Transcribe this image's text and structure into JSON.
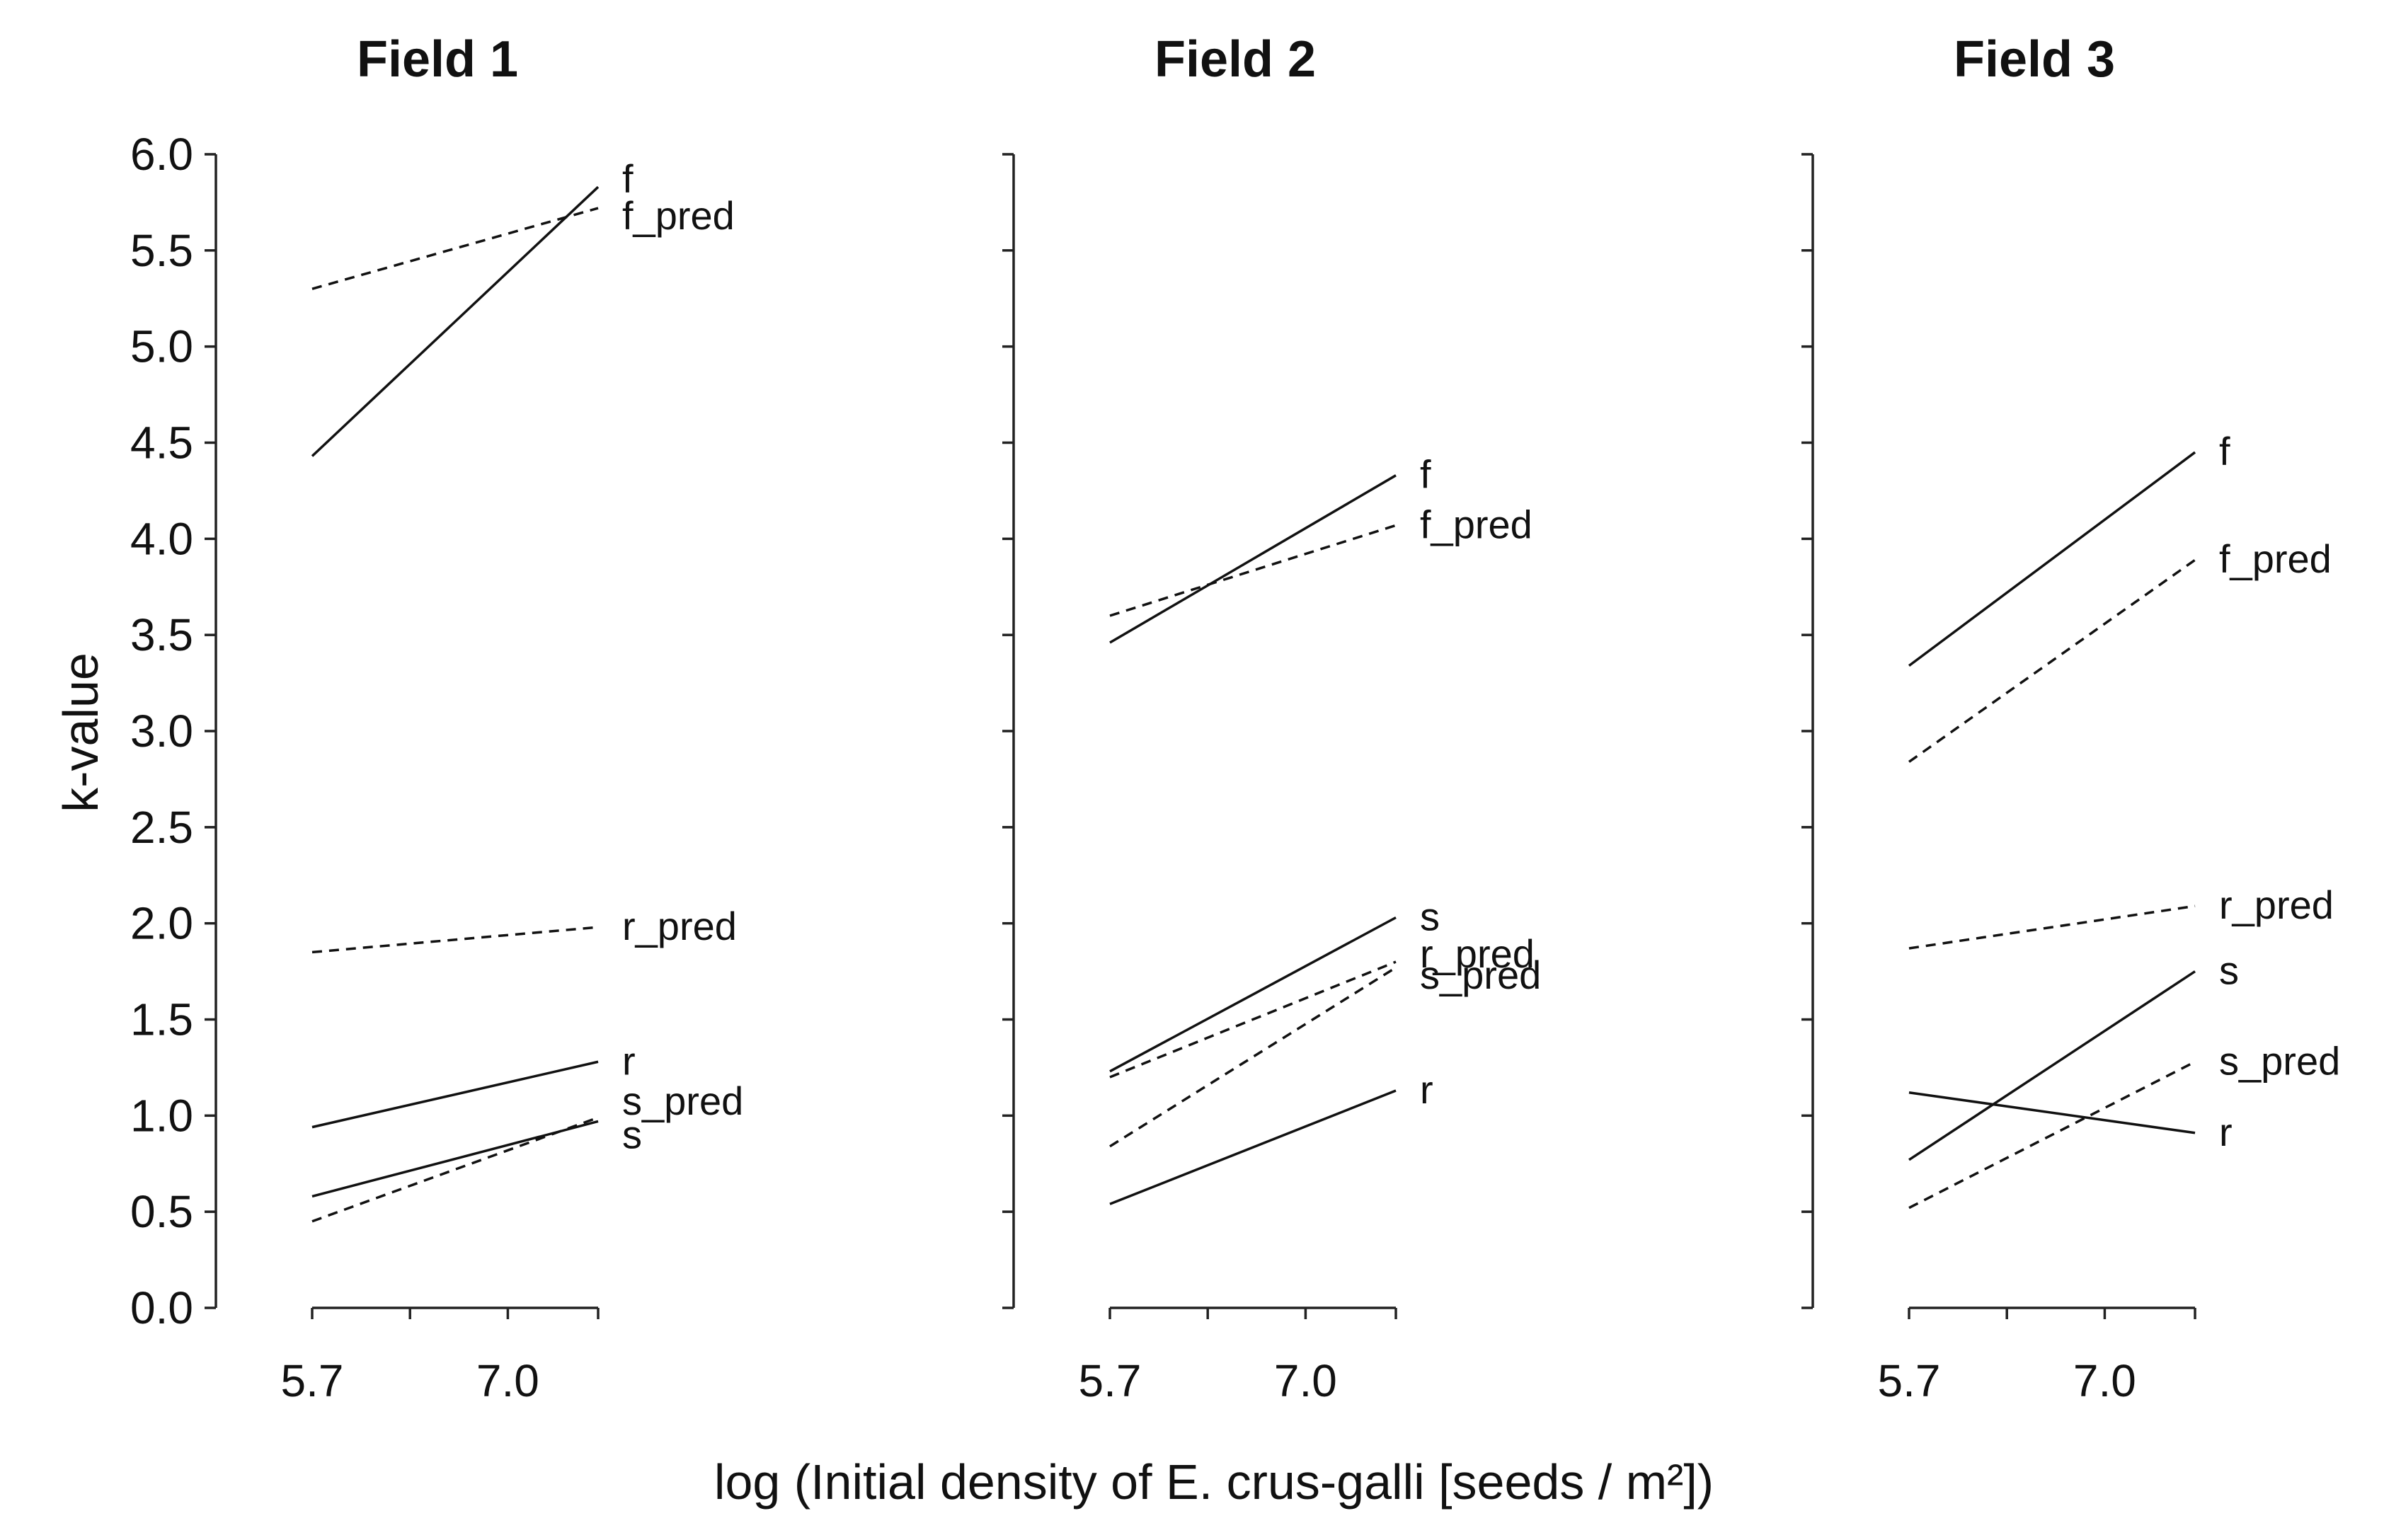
{
  "chart_data": {
    "type": "line",
    "y_axis_label": "k-value",
    "x_axis_label": "log (Initial density of E. crus-galli [seeds / m²])",
    "x_ticks": [
      "5.7",
      "7.0"
    ],
    "x_values": [
      5.7,
      7.6
    ],
    "ylim": [
      0.0,
      6.0
    ],
    "y_ticks": [
      "0.0",
      "0.5",
      "1.0",
      "1.5",
      "2.0",
      "2.5",
      "3.0",
      "3.5",
      "4.0",
      "4.5",
      "5.0",
      "5.5",
      "6.0"
    ],
    "grid": false,
    "panels": [
      {
        "title": "Field 1",
        "series": [
          {
            "name": "f",
            "style": "solid",
            "values": [
              4.43,
              5.83
            ]
          },
          {
            "name": "f_pred",
            "style": "dashed",
            "values": [
              5.3,
              5.72
            ]
          },
          {
            "name": "r_pred",
            "style": "dashed",
            "values": [
              1.85,
              1.98
            ]
          },
          {
            "name": "r",
            "style": "solid",
            "values": [
              0.94,
              1.28
            ]
          },
          {
            "name": "s_pred",
            "style": "dashed",
            "values": [
              0.45,
              0.99
            ]
          },
          {
            "name": "s",
            "style": "solid",
            "values": [
              0.58,
              0.97
            ]
          }
        ]
      },
      {
        "title": "Field 2",
        "series": [
          {
            "name": "f",
            "style": "solid",
            "values": [
              3.46,
              4.33
            ]
          },
          {
            "name": "f_pred",
            "style": "dashed",
            "values": [
              3.6,
              4.07
            ]
          },
          {
            "name": "s",
            "style": "solid",
            "values": [
              1.23,
              2.03
            ]
          },
          {
            "name": "r_pred",
            "style": "dashed",
            "values": [
              1.2,
              1.8
            ]
          },
          {
            "name": "s_pred",
            "style": "dashed",
            "values": [
              0.84,
              1.77
            ]
          },
          {
            "name": "r",
            "style": "solid",
            "values": [
              0.54,
              1.13
            ]
          }
        ]
      },
      {
        "title": "Field 3",
        "series": [
          {
            "name": "f",
            "style": "solid",
            "values": [
              3.34,
              4.45
            ]
          },
          {
            "name": "f_pred",
            "style": "dashed",
            "values": [
              2.84,
              3.89
            ]
          },
          {
            "name": "r_pred",
            "style": "dashed",
            "values": [
              1.87,
              2.09
            ]
          },
          {
            "name": "s",
            "style": "solid",
            "values": [
              0.77,
              1.75
            ]
          },
          {
            "name": "s_pred",
            "style": "dashed",
            "values": [
              0.52,
              1.28
            ]
          },
          {
            "name": "r",
            "style": "solid",
            "values": [
              1.12,
              0.91
            ]
          }
        ]
      }
    ]
  }
}
